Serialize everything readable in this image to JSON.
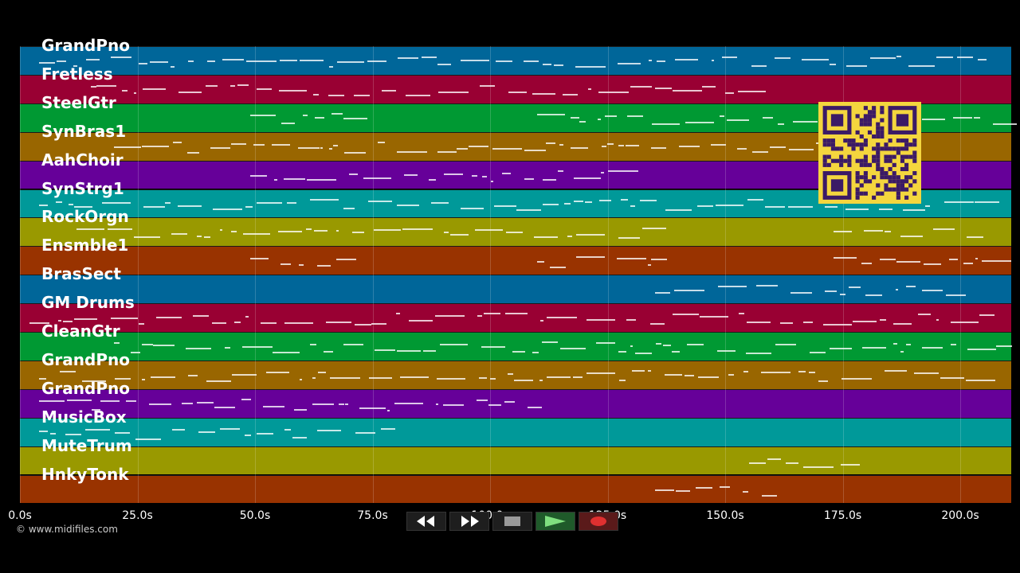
{
  "tracks": [
    {
      "label": "GrandPno",
      "color": "#006699"
    },
    {
      "label": "Fretless",
      "color": "#990033"
    },
    {
      "label": "SteelGtr",
      "color": "#009933"
    },
    {
      "label": "SynBras1",
      "color": "#996600"
    },
    {
      "label": "AahChoir",
      "color": "#660099"
    },
    {
      "label": "SynStrg1",
      "color": "#009999"
    },
    {
      "label": "RockOrgn",
      "color": "#999900"
    },
    {
      "label": "Ensmble1",
      "color": "#993300"
    },
    {
      "label": "BrasSect",
      "color": "#006699"
    },
    {
      "label": "GM Drums",
      "color": "#990033"
    },
    {
      "label": "CleanGtr",
      "color": "#009933"
    },
    {
      "label": "GrandPno",
      "color": "#996600"
    },
    {
      "label": "GrandPno",
      "color": "#660099"
    },
    {
      "label": "MusicBox",
      "color": "#009999"
    },
    {
      "label": "MuteTrum",
      "color": "#999900"
    },
    {
      "label": "HnkyTonk",
      "color": "#993300"
    }
  ],
  "axis": {
    "ticks": [
      "0.0s",
      "25.0s",
      "50.0s",
      "75.0s",
      "100.0s",
      "125.0s",
      "150.0s",
      "175.0s",
      "200.0s"
    ],
    "tick_values": [
      0,
      25,
      50,
      75,
      100,
      125,
      150,
      175,
      200
    ],
    "max_seconds": 210
  },
  "copyright": "© www.midifiles.com",
  "transport": [
    {
      "name": "rewind-button",
      "icon": "rewind-icon"
    },
    {
      "name": "fast-forward-button",
      "icon": "fast-forward-icon"
    },
    {
      "name": "stop-button",
      "icon": "stop-icon"
    },
    {
      "name": "play-button",
      "icon": "play-icon"
    },
    {
      "name": "record-button",
      "icon": "record-icon"
    }
  ],
  "qr": {
    "icon": "qr-code-icon",
    "color": "#f4d63e"
  }
}
